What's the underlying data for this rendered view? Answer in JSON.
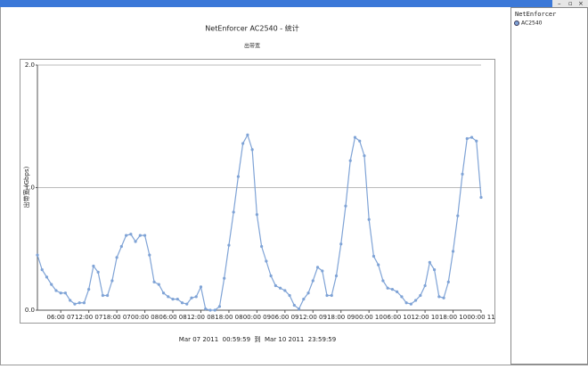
{
  "chart_data": {
    "type": "line",
    "title": "NetEnforcer AC2540 - 统计",
    "subtitle": "出带宽",
    "y_label": "出带宽 (Gbps)",
    "footer": "Mar 07 2011  00:59:59  到  Mar 10 2011  23:59:59",
    "legend_title": "NetEnforcer",
    "x": [
      1,
      2,
      3,
      4,
      5,
      6,
      7,
      8,
      9,
      10,
      11,
      12,
      13,
      14,
      15,
      16,
      17,
      18,
      19,
      20,
      21,
      22,
      23,
      24,
      25,
      26,
      27,
      28,
      29,
      30,
      31,
      32,
      33,
      34,
      35,
      36,
      37,
      38,
      39,
      40,
      41,
      42,
      43,
      44,
      45,
      46,
      47,
      48,
      49,
      50,
      51,
      52,
      53,
      54,
      55,
      56,
      57,
      58,
      59,
      60,
      61,
      62,
      63,
      64,
      65,
      66,
      67,
      68,
      69,
      70,
      71,
      72,
      73,
      74,
      75,
      76,
      77,
      78,
      79,
      80,
      81,
      82,
      83,
      84,
      85,
      86,
      87,
      88,
      89,
      90,
      91,
      92,
      93,
      94,
      95,
      96
    ],
    "xlim": [
      1,
      96
    ],
    "xticks": [
      {
        "value": 6,
        "label": "06:00 07"
      },
      {
        "value": 12,
        "label": "12:00 07"
      },
      {
        "value": 18,
        "label": "18:00 07"
      },
      {
        "value": 24,
        "label": "00:00 08"
      },
      {
        "value": 30,
        "label": "06:00 08"
      },
      {
        "value": 36,
        "label": "12:00 08"
      },
      {
        "value": 42,
        "label": "18:00 08"
      },
      {
        "value": 48,
        "label": "00:00 09"
      },
      {
        "value": 54,
        "label": "06:00 09"
      },
      {
        "value": 60,
        "label": "12:00 09"
      },
      {
        "value": 66,
        "label": "18:00 09"
      },
      {
        "value": 72,
        "label": "00:00 10"
      },
      {
        "value": 78,
        "label": "06:00 10"
      },
      {
        "value": 84,
        "label": "12:00 10"
      },
      {
        "value": 90,
        "label": "18:00 10"
      },
      {
        "value": 96,
        "label": "00:00 11"
      }
    ],
    "ylim": [
      0,
      2
    ],
    "yticks": [
      {
        "value": 0,
        "label": "0.0"
      },
      {
        "value": 1,
        "label": "1.0"
      },
      {
        "value": 2,
        "label": "2.0"
      }
    ],
    "grid": true,
    "series": [
      {
        "name": "AC2540",
        "color": "#7fa3d6",
        "values": [
          0.45,
          0.33,
          0.27,
          0.21,
          0.16,
          0.14,
          0.14,
          0.08,
          0.05,
          0.06,
          0.06,
          0.17,
          0.36,
          0.31,
          0.12,
          0.12,
          0.24,
          0.43,
          0.52,
          0.61,
          0.62,
          0.56,
          0.61,
          0.61,
          0.45,
          0.23,
          0.21,
          0.14,
          0.11,
          0.09,
          0.09,
          0.06,
          0.05,
          0.1,
          0.11,
          0.19,
          0.01,
          0.0,
          0.0,
          0.03,
          0.26,
          0.53,
          0.8,
          1.09,
          1.36,
          1.43,
          1.31,
          0.78,
          0.52,
          0.4,
          0.28,
          0.2,
          0.18,
          0.16,
          0.12,
          0.04,
          0.01,
          0.09,
          0.14,
          0.24,
          0.35,
          0.32,
          0.12,
          0.12,
          0.28,
          0.54,
          0.85,
          1.22,
          1.41,
          1.38,
          1.26,
          0.74,
          0.44,
          0.37,
          0.24,
          0.18,
          0.17,
          0.15,
          0.11,
          0.06,
          0.05,
          0.08,
          0.12,
          0.2,
          0.39,
          0.33,
          0.11,
          0.1,
          0.23,
          0.48,
          0.77,
          1.11,
          1.4,
          1.41,
          1.38,
          0.92
        ]
      }
    ]
  }
}
